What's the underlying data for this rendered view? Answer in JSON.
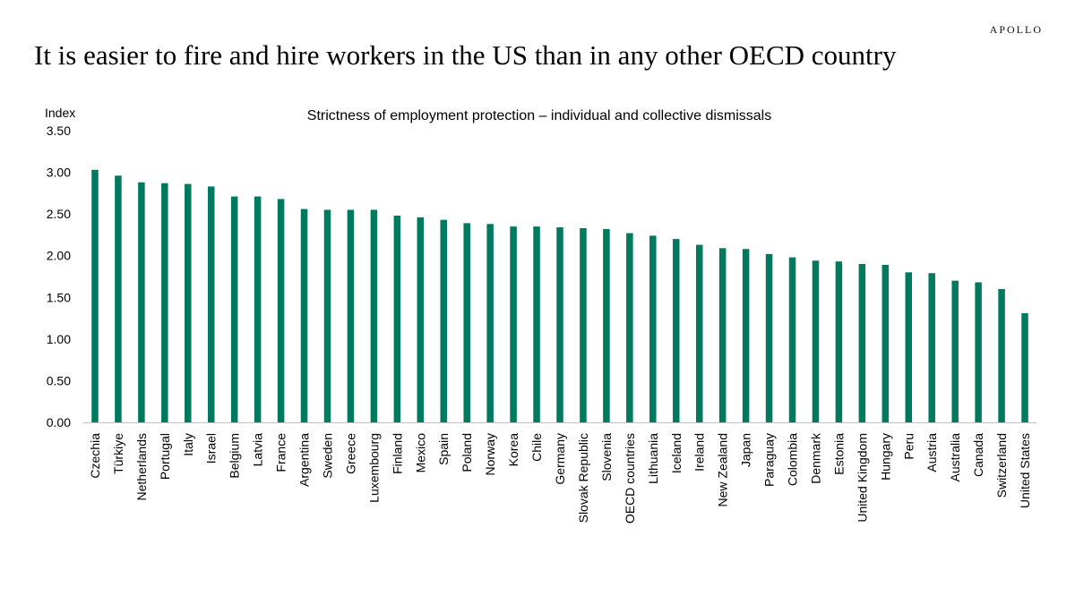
{
  "brand": "APOLLO",
  "headline": "It is easier to fire and hire workers in the US than in any other OECD country",
  "colors": {
    "bar": "#007A5E",
    "axis": "#BFBFBF",
    "text": "#000000"
  },
  "chart_data": {
    "type": "bar",
    "title": "Strictness of employment protection – individual and collective dismissals",
    "ylabel": "Index",
    "xlabel": "",
    "ylim": [
      0,
      3.5
    ],
    "yticks": [
      "0.00",
      "0.50",
      "1.00",
      "1.50",
      "2.00",
      "2.50",
      "3.00",
      "3.50"
    ],
    "grid": false,
    "legend": "none",
    "categories": [
      "Czechia",
      "Türkiye",
      "Netherlands",
      "Portugal",
      "Italy",
      "Israel",
      "Belgium",
      "Latvia",
      "France",
      "Argentina",
      "Sweden",
      "Greece",
      "Luxembourg",
      "Finland",
      "Mexico",
      "Spain",
      "Poland",
      "Norway",
      "Korea",
      "Chile",
      "Germany",
      "Slovak Republic",
      "Slovenia",
      "OECD countries",
      "Lithuania",
      "Iceland",
      "Ireland",
      "New Zealand",
      "Japan",
      "Paraguay",
      "Colombia",
      "Denmark",
      "Estonia",
      "United Kingdom",
      "Hungary",
      "Peru",
      "Austria",
      "Australia",
      "Canada",
      "Switzerland",
      "United States"
    ],
    "values": [
      3.03,
      2.96,
      2.88,
      2.87,
      2.86,
      2.83,
      2.71,
      2.71,
      2.68,
      2.56,
      2.55,
      2.55,
      2.55,
      2.48,
      2.46,
      2.43,
      2.39,
      2.38,
      2.35,
      2.35,
      2.34,
      2.33,
      2.32,
      2.27,
      2.24,
      2.2,
      2.13,
      2.09,
      2.08,
      2.02,
      1.98,
      1.94,
      1.93,
      1.9,
      1.89,
      1.8,
      1.79,
      1.7,
      1.68,
      1.6,
      1.31
    ]
  }
}
